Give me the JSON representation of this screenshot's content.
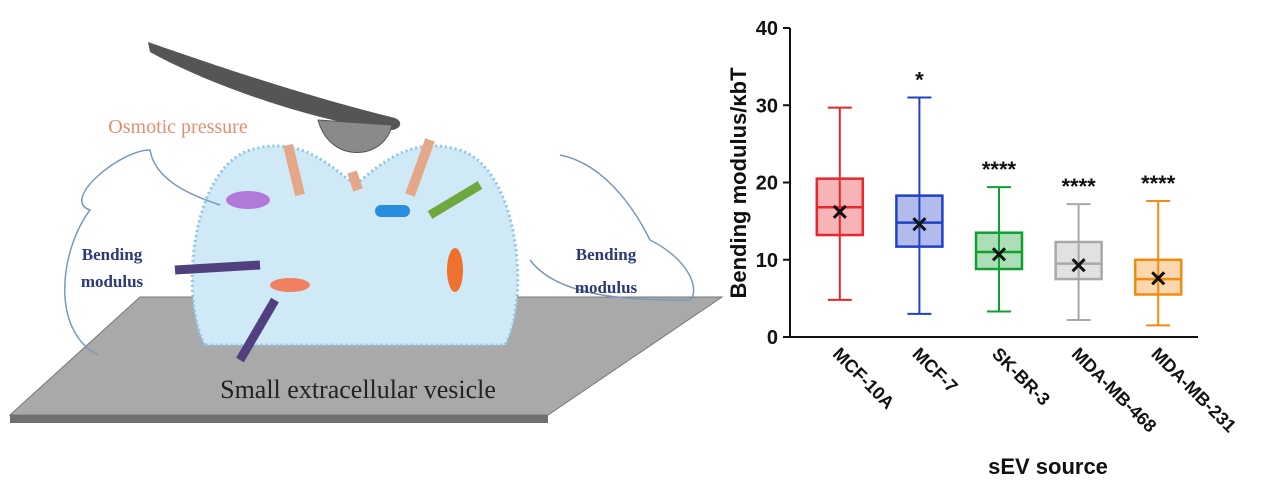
{
  "diagram": {
    "osmotic_label": "Osmotic pressure",
    "bending_left": [
      "Bending",
      "modulus"
    ],
    "bending_right": [
      "Bending",
      "modulus"
    ],
    "vesicle_label": "Small extracellular vesicle"
  },
  "chart_data": {
    "type": "box",
    "y_label": "Bending modulus/κbT",
    "x_label": "sEV source",
    "categories": [
      "MCF-10A",
      "MCF-7",
      "SK-BR-3",
      "MDA-MB-468",
      "MDA-MB-231"
    ],
    "annotations": [
      null,
      "*",
      "****",
      "****",
      "****"
    ],
    "series": [
      {
        "color": "#e8262d",
        "min": 4.8,
        "q1": 13.2,
        "median": 16.8,
        "q3": 20.5,
        "max": 29.7,
        "mean": 16.2
      },
      {
        "color": "#2140c8",
        "min": 3.0,
        "q1": 11.7,
        "median": 14.8,
        "q3": 18.3,
        "max": 31.0,
        "mean": 14.6
      },
      {
        "color": "#10a030",
        "min": 3.3,
        "q1": 8.8,
        "median": 11.0,
        "q3": 13.5,
        "max": 19.4,
        "mean": 10.7
      },
      {
        "color": "#a8a8a8",
        "min": 2.2,
        "q1": 7.5,
        "median": 9.5,
        "q3": 12.3,
        "max": 17.2,
        "mean": 9.3
      },
      {
        "color": "#f08c10",
        "min": 1.5,
        "q1": 5.5,
        "median": 7.5,
        "q3": 10.0,
        "max": 17.6,
        "mean": 7.6
      }
    ],
    "ylim": [
      0,
      40
    ],
    "yticks": [
      0,
      10,
      20,
      30,
      40
    ]
  }
}
